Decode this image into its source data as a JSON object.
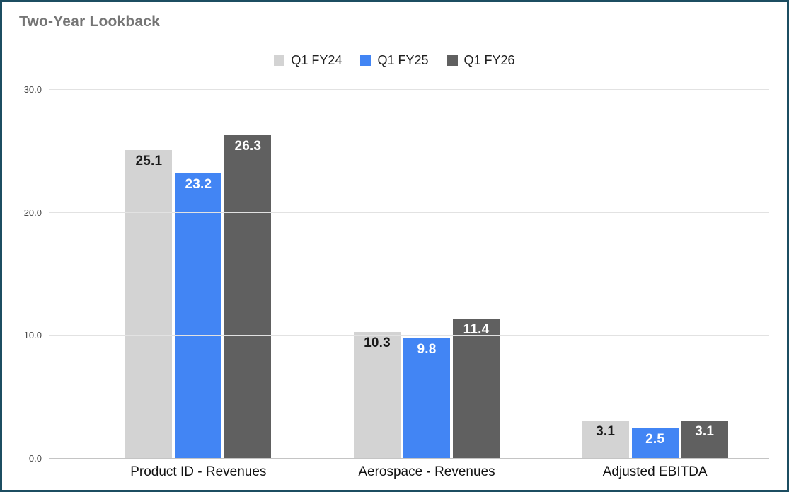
{
  "theme": {
    "border_color": "#1c4d61",
    "title_color": "#757575",
    "gridline_color": "#e2e2e2",
    "baseline_color": "#c4c4c4"
  },
  "chart_data": {
    "type": "bar",
    "title": "Two-Year Lookback",
    "categories": [
      "Product ID - Revenues",
      "Aerospace - Revenues",
      "Adjusted EBITDA"
    ],
    "series": [
      {
        "name": "Q1 FY24",
        "color": "#d3d3d3",
        "label_color": "#1a1a1a",
        "values": [
          25.1,
          10.3,
          3.1
        ]
      },
      {
        "name": "Q1 FY25",
        "color": "#4285f4",
        "label_color": "#ffffff",
        "values": [
          23.2,
          9.8,
          2.5
        ]
      },
      {
        "name": "Q1 FY26",
        "color": "#606060",
        "label_color": "#ffffff",
        "values": [
          26.3,
          11.4,
          3.1
        ]
      }
    ],
    "y_axis": {
      "min": 0,
      "max": 30,
      "ticks": [
        {
          "value": 0,
          "label": "0.0"
        },
        {
          "value": 10,
          "label": "10.0"
        },
        {
          "value": 20,
          "label": "20.0"
        },
        {
          "value": 30,
          "label": "30.0"
        }
      ]
    },
    "value_label_decimals": 1,
    "legend_position": "top",
    "grid": true
  }
}
